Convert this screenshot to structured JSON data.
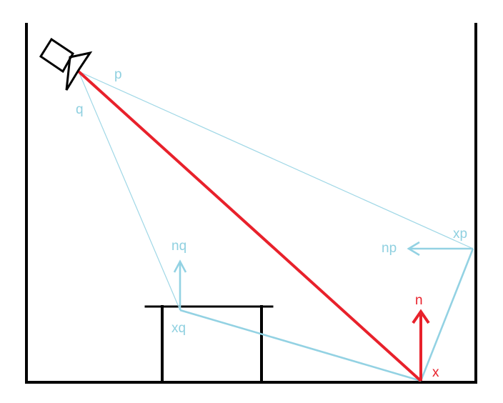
{
  "labels": {
    "p": "p",
    "q": "q",
    "xp": "xp",
    "np": "np",
    "nq": "nq",
    "xq": "xq",
    "n": "n",
    "x": "x"
  },
  "colors": {
    "blue": "#8fd0e0",
    "red": "#e8212b",
    "black": "#000000"
  },
  "icons": {
    "light": "spotlight-icon"
  }
}
